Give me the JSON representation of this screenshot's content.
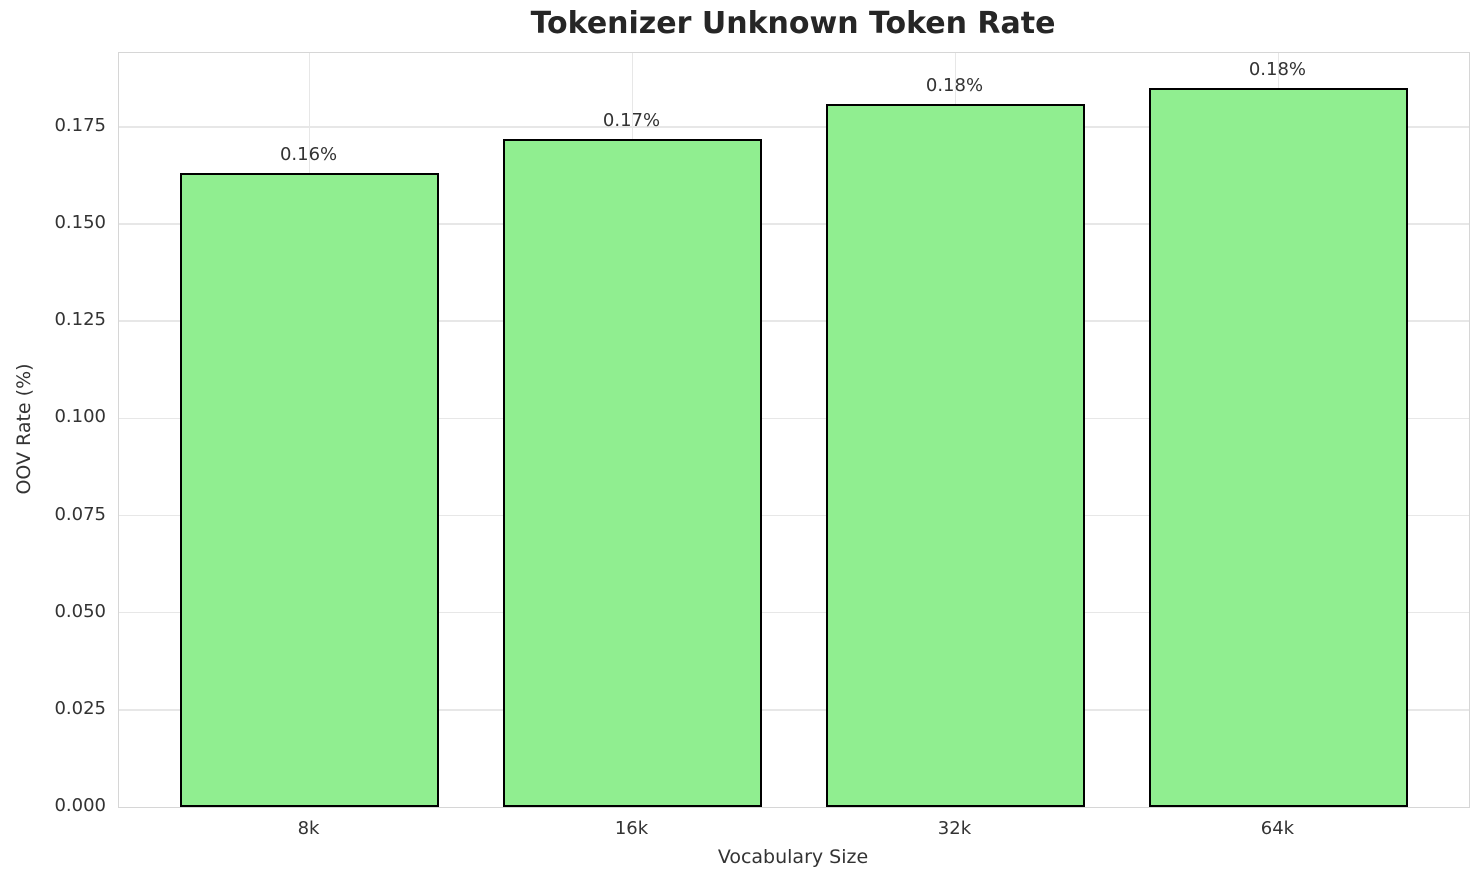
{
  "chart_data": {
    "type": "bar",
    "title": "Tokenizer Unknown Token Rate",
    "xlabel": "Vocabulary Size",
    "ylabel": "OOV Rate (%)",
    "categories": [
      "8k",
      "16k",
      "32k",
      "64k"
    ],
    "values": [
      0.163,
      0.172,
      0.181,
      0.185
    ],
    "bar_labels": [
      "0.16%",
      "0.17%",
      "0.18%",
      "0.18%"
    ],
    "ylim": [
      0,
      0.194
    ],
    "yticks": [
      0.0,
      0.025,
      0.05,
      0.075,
      0.1,
      0.125,
      0.15,
      0.175
    ],
    "ytick_labels": [
      "0.000",
      "0.025",
      "0.050",
      "0.075",
      "0.100",
      "0.125",
      "0.150",
      "0.175"
    ],
    "grid": true,
    "legend": "none",
    "bar_color": "#90EE90",
    "bar_edge_color": "#000000",
    "grid_color": "#e7e7e7",
    "spine_color": "#d6d6d6",
    "text_color": "#333333",
    "title_color": "#262626",
    "bar_width_fraction": 0.8,
    "x_margin_fraction": 0.05
  }
}
